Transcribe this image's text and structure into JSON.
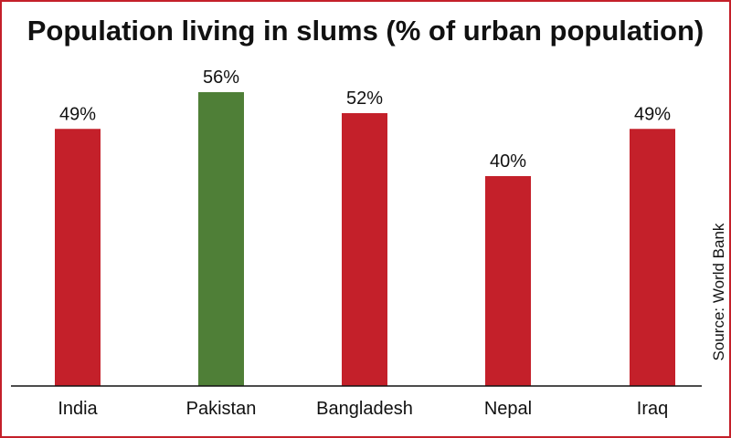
{
  "chart_data": {
    "type": "bar",
    "title": "Population living in slums (% of urban population)",
    "categories": [
      "India",
      "Pakistan",
      "Bangladesh",
      "Nepal",
      "Iraq"
    ],
    "values": [
      49,
      56,
      52,
      40,
      49
    ],
    "value_labels": [
      "49%",
      "56%",
      "52%",
      "40%",
      "49%"
    ],
    "bar_colors": [
      "#c4202a",
      "#4f7f37",
      "#c4202a",
      "#c4202a",
      "#c4202a"
    ],
    "source": "Source: World Bank",
    "xlabel": "",
    "ylabel": "",
    "ylim": [
      0,
      100
    ],
    "grid": false,
    "legend": "none"
  },
  "colors": {
    "frame": "#c4202a",
    "highlight": "#4f7f37",
    "bar": "#c4202a"
  }
}
